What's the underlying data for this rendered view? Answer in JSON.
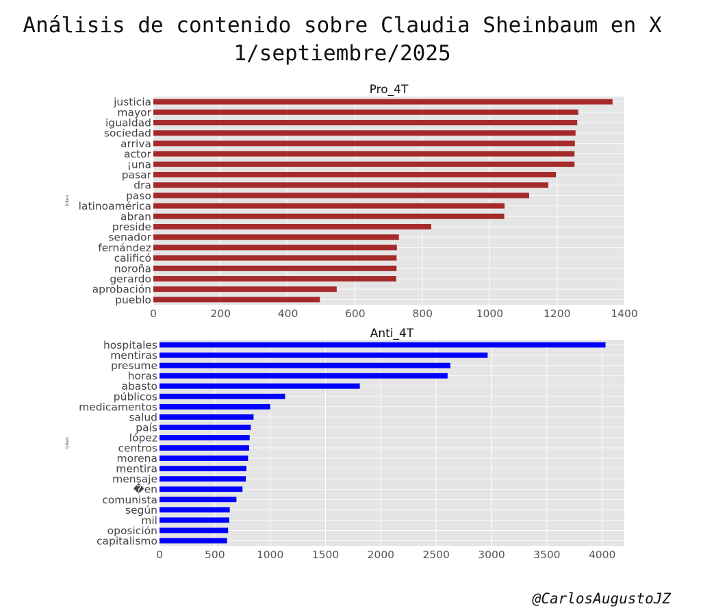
{
  "title": {
    "line1": "Análisis de contenido sobre Claudia Sheinbaum en X",
    "line2": "1/septiembre/2025"
  },
  "watermark": "@CarlosAugustoJZ",
  "chart_data": [
    {
      "type": "bar",
      "orientation": "horizontal",
      "title": "Pro_4T",
      "ylabel": "token",
      "xlabel": "",
      "color": "#a52a2a",
      "xlim": [
        0,
        1400
      ],
      "xticks": [
        0,
        200,
        400,
        600,
        800,
        1000,
        1200,
        1400
      ],
      "grid": true,
      "categories": [
        "justicia",
        "mayor",
        "igualdad",
        "sociedad",
        "arriva",
        "actor",
        "¡una",
        "pasar",
        "dra",
        "paso",
        "latinoamérica",
        "abran",
        "preside",
        "senador",
        "fernández",
        "calificó",
        "noroña",
        "gerardo",
        "aprobación",
        "pueblo"
      ],
      "values": [
        1365,
        1263,
        1260,
        1255,
        1253,
        1252,
        1252,
        1197,
        1174,
        1117,
        1044,
        1043,
        826,
        730,
        724,
        723,
        723,
        722,
        545,
        495
      ]
    },
    {
      "type": "bar",
      "orientation": "horizontal",
      "title": "Anti_4T",
      "ylabel": "token",
      "xlabel": "",
      "color": "#0000ff",
      "xlim": [
        0,
        4200
      ],
      "xticks": [
        0,
        500,
        1000,
        1500,
        2000,
        2500,
        3000,
        3500,
        4000
      ],
      "grid": true,
      "categories": [
        "hospitales",
        "mentiras",
        "presume",
        "horas",
        "abasto",
        "públicos",
        "medicamentos",
        "salud",
        "país",
        "lópez",
        "centros",
        "morena",
        "mentira",
        "mensaje",
        "�en",
        "comunista",
        "según",
        "mil",
        "oposición",
        "capitalismo"
      ],
      "values": [
        4030,
        2965,
        2628,
        2603,
        1810,
        1135,
        1000,
        850,
        825,
        815,
        810,
        800,
        785,
        780,
        750,
        695,
        635,
        630,
        620,
        610
      ]
    }
  ]
}
